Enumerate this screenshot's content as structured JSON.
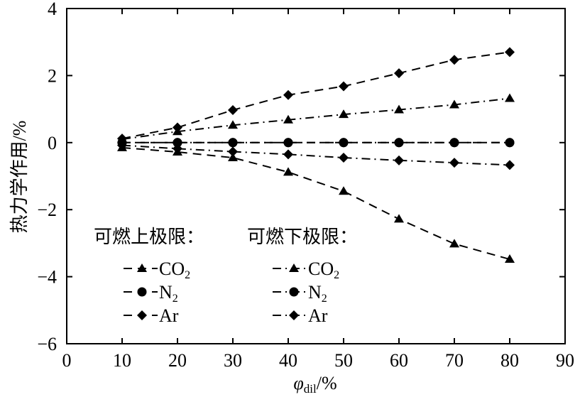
{
  "chart_data": {
    "type": "line",
    "xlabel": "φdil/%",
    "xlabel_main": "φ",
    "xlabel_sub": "dil",
    "xlabel_unit": "/%",
    "ylabel": "热力学作用/%",
    "xlim": [
      0,
      90
    ],
    "ylim": [
      -6,
      4
    ],
    "xticks": [
      0,
      10,
      20,
      30,
      40,
      50,
      60,
      70,
      80,
      90
    ],
    "yticks": [
      -6,
      -4,
      -2,
      0,
      2,
      4
    ],
    "ytick_labels": [
      "−6",
      "−4",
      "−2",
      "0",
      "2",
      "4"
    ],
    "grid": false,
    "legend_position": "bottom-left",
    "legend_groups": [
      {
        "title": "可燃上极限：",
        "style": "dashed"
      },
      {
        "title": "可燃下极限：",
        "style": "dashdot"
      }
    ],
    "x": [
      10,
      20,
      30,
      40,
      50,
      60,
      70,
      80
    ],
    "series": [
      {
        "group": "可燃上极限：",
        "name": "CO2",
        "label_main": "CO",
        "label_sub": "2",
        "marker": "triangle",
        "style": "dashed",
        "values": [
          -0.15,
          -0.28,
          -0.45,
          -0.88,
          -1.45,
          -2.28,
          -3.02,
          -3.48
        ]
      },
      {
        "group": "可燃上极限：",
        "name": "N2",
        "label_main": "N",
        "label_sub": "2",
        "marker": "circle",
        "style": "dashed",
        "values": [
          0.0,
          0.0,
          0.0,
          0.0,
          0.0,
          0.0,
          0.0,
          0.0
        ]
      },
      {
        "group": "可燃上极限：",
        "name": "Ar",
        "label_main": "Ar",
        "label_sub": "",
        "marker": "diamond",
        "style": "dashed",
        "values": [
          0.12,
          0.45,
          0.97,
          1.42,
          1.68,
          2.07,
          2.47,
          2.7
        ]
      },
      {
        "group": "可燃下极限：",
        "name": "CO2",
        "label_main": "CO",
        "label_sub": "2",
        "marker": "triangle",
        "style": "dashdot",
        "values": [
          0.1,
          0.33,
          0.52,
          0.68,
          0.84,
          0.98,
          1.13,
          1.32
        ]
      },
      {
        "group": "可燃下极限：",
        "name": "N2",
        "label_main": "N",
        "label_sub": "2",
        "marker": "circle",
        "style": "dashdot",
        "values": [
          0.0,
          0.0,
          0.0,
          0.0,
          0.0,
          0.0,
          0.0,
          0.0
        ]
      },
      {
        "group": "可燃下极限：",
        "name": "Ar",
        "label_main": "Ar",
        "label_sub": "",
        "marker": "diamond",
        "style": "dashdot",
        "values": [
          -0.08,
          -0.18,
          -0.27,
          -0.35,
          -0.45,
          -0.53,
          -0.6,
          -0.67
        ]
      }
    ]
  }
}
